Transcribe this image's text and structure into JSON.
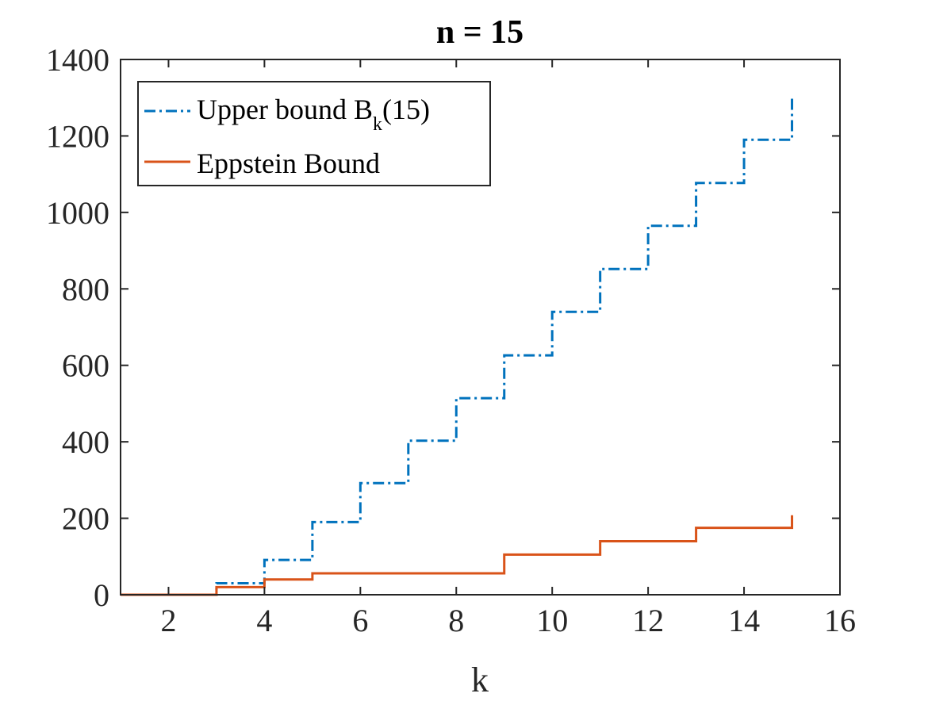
{
  "chart_data": {
    "type": "line",
    "step": "post",
    "title": "n = 15",
    "xlabel": "k",
    "ylabel": "",
    "xlim": [
      1,
      16
    ],
    "ylim": [
      0,
      1400
    ],
    "xticks": [
      2,
      4,
      6,
      8,
      10,
      12,
      14,
      16
    ],
    "yticks": [
      0,
      200,
      400,
      600,
      800,
      1000,
      1200,
      1400
    ],
    "grid": false,
    "legend_position": "top-left",
    "series": [
      {
        "name_main": "Upper bound B",
        "name_sub": "k",
        "name_tail": "(15)",
        "color": "#0072BD",
        "line_style": "dash-dot",
        "x": [
          1,
          2,
          3,
          4,
          5,
          6,
          7,
          8,
          9,
          10,
          11,
          12,
          13,
          14,
          15
        ],
        "values": [
          0,
          0,
          30,
          91,
          190,
          292,
          403,
          514,
          626,
          740,
          852,
          965,
          1077,
          1190,
          1300
        ]
      },
      {
        "name": "Eppstein Bound",
        "color": "#D95319",
        "line_style": "solid",
        "x": [
          1,
          2,
          3,
          4,
          5,
          6,
          7,
          8,
          9,
          10,
          11,
          12,
          13,
          14,
          15
        ],
        "values": [
          0,
          0,
          20,
          40,
          56,
          56,
          56,
          56,
          105,
          105,
          140,
          140,
          175,
          175,
          208
        ]
      }
    ]
  }
}
